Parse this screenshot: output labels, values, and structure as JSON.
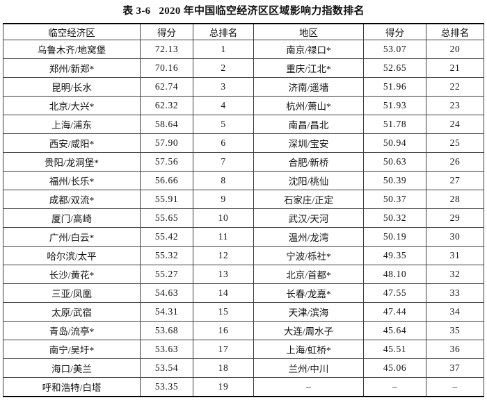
{
  "page": {
    "background": "#ffffff",
    "text_color": "#111111",
    "outer_border_color": "#000000",
    "grid_line_color": "#3c3c3c"
  },
  "title": {
    "tag": "表 3-6",
    "text": "2020 年中国临空经济区区域影响力指数排名"
  },
  "table": {
    "headers": [
      "临空经济区",
      "得分",
      "总排名",
      "地区",
      "得分",
      "总排名"
    ],
    "rows": [
      [
        "乌鲁木齐/地窝堡",
        "72.13",
        "1",
        "南京/禄口*",
        "53.07",
        "20"
      ],
      [
        "郑州/新郑*",
        "70.16",
        "2",
        "重庆/江北*",
        "52.65",
        "21"
      ],
      [
        "昆明/长水",
        "62.74",
        "3",
        "济南/遥墙",
        "51.96",
        "22"
      ],
      [
        "北京/大兴*",
        "62.32",
        "4",
        "杭州/萧山*",
        "51.93",
        "23"
      ],
      [
        "上海/浦东",
        "58.64",
        "5",
        "南昌/昌北",
        "51.78",
        "24"
      ],
      [
        "西安/咸阳*",
        "57.90",
        "6",
        "深圳/宝安",
        "50.94",
        "25"
      ],
      [
        "贵阳/龙洞堡*",
        "57.56",
        "7",
        "合肥/新桥",
        "50.63",
        "26"
      ],
      [
        "福州/长乐*",
        "56.66",
        "8",
        "沈阳/桃仙",
        "50.39",
        "27"
      ],
      [
        "成都/双流*",
        "55.91",
        "9",
        "石家庄/正定",
        "50.37",
        "28"
      ],
      [
        "厦门/高崎",
        "55.65",
        "10",
        "武汉/天河",
        "50.32",
        "29"
      ],
      [
        "广州/白云*",
        "55.42",
        "11",
        "温州/龙湾",
        "50.19",
        "30"
      ],
      [
        "哈尔滨/太平",
        "55.32",
        "12",
        "宁波/栎社*",
        "49.35",
        "31"
      ],
      [
        "长沙/黄花*",
        "55.27",
        "13",
        "北京/首都*",
        "48.10",
        "32"
      ],
      [
        "三亚/凤凰",
        "54.63",
        "14",
        "长春/龙嘉*",
        "47.55",
        "33"
      ],
      [
        "太原/武宿",
        "54.31",
        "15",
        "天津/滨海",
        "47.44",
        "34"
      ],
      [
        "青岛/流亭*",
        "53.68",
        "16",
        "大连/周水子",
        "45.64",
        "35"
      ],
      [
        "南宁/吴圩*",
        "53.63",
        "17",
        "上海/虹桥*",
        "45.51",
        "36"
      ],
      [
        "海口/美兰",
        "53.54",
        "18",
        "兰州/中川",
        "45.06",
        "37"
      ],
      [
        "呼和浩特/白塔",
        "53.35",
        "19",
        "–",
        "–",
        "–"
      ]
    ]
  }
}
